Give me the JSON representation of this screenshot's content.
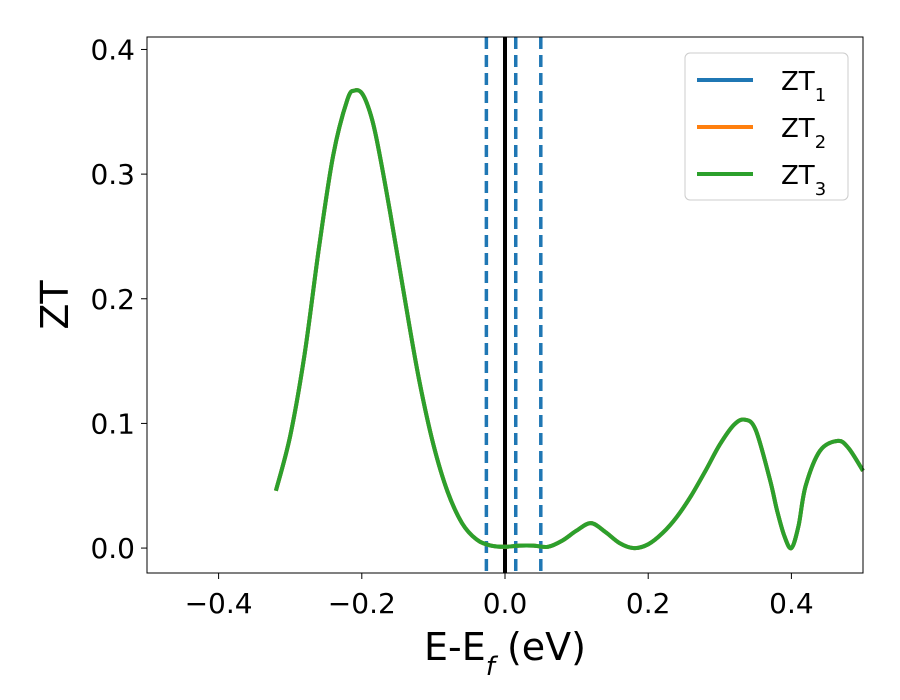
{
  "chart_data": {
    "type": "line",
    "xlabel": {
      "main": "E-E",
      "sub": "f",
      "tail": " (eV)"
    },
    "ylabel": "ZT",
    "xlim": [
      -0.5,
      0.5
    ],
    "ylim": [
      -0.02,
      0.41
    ],
    "x_ticks": [
      -0.4,
      -0.2,
      0.0,
      0.2,
      0.4
    ],
    "x_tick_labels": [
      "−0.4",
      "−0.2",
      "0.0",
      "0.2",
      "0.4"
    ],
    "y_ticks": [
      0.0,
      0.1,
      0.2,
      0.3,
      0.4
    ],
    "y_tick_labels": [
      "0.0",
      "0.1",
      "0.2",
      "0.3",
      "0.4"
    ],
    "grid": false,
    "legend_position": "top-right",
    "series": [
      {
        "name": "ZT",
        "subscript": "1",
        "color": "#1f77b4"
      },
      {
        "name": "ZT",
        "subscript": "2",
        "color": "#ff7f0e"
      },
      {
        "name": "ZT",
        "subscript": "3",
        "color": "#2ca02c"
      }
    ],
    "curve_x": [
      -0.32,
      -0.3,
      -0.28,
      -0.26,
      -0.24,
      -0.22,
      -0.21,
      -0.2,
      -0.19,
      -0.18,
      -0.16,
      -0.14,
      -0.12,
      -0.1,
      -0.08,
      -0.06,
      -0.04,
      -0.02,
      0.0,
      0.02,
      0.04,
      0.06,
      0.08,
      0.1,
      0.12,
      0.14,
      0.16,
      0.18,
      0.2,
      0.22,
      0.24,
      0.26,
      0.28,
      0.3,
      0.32,
      0.335,
      0.35,
      0.37,
      0.38,
      0.39,
      0.4,
      0.41,
      0.42,
      0.44,
      0.465,
      0.48,
      0.5
    ],
    "curve_y": [
      0.046,
      0.09,
      0.155,
      0.24,
      0.315,
      0.36,
      0.367,
      0.365,
      0.352,
      0.33,
      0.268,
      0.2,
      0.135,
      0.083,
      0.045,
      0.02,
      0.007,
      0.002,
      0.001,
      0.002,
      0.002,
      0.001,
      0.006,
      0.014,
      0.02,
      0.013,
      0.004,
      0.0,
      0.003,
      0.012,
      0.025,
      0.042,
      0.062,
      0.083,
      0.099,
      0.103,
      0.095,
      0.055,
      0.03,
      0.01,
      0.0,
      0.018,
      0.05,
      0.078,
      0.086,
      0.08,
      0.062
    ],
    "vertical_lines": [
      {
        "x": 0.0,
        "style": "solid",
        "color": "#000000"
      },
      {
        "x": -0.026,
        "style": "dashed",
        "color": "#1f77b4"
      },
      {
        "x": 0.015,
        "style": "dashed",
        "color": "#1f77b4"
      },
      {
        "x": 0.05,
        "style": "dashed",
        "color": "#1f77b4"
      }
    ]
  }
}
